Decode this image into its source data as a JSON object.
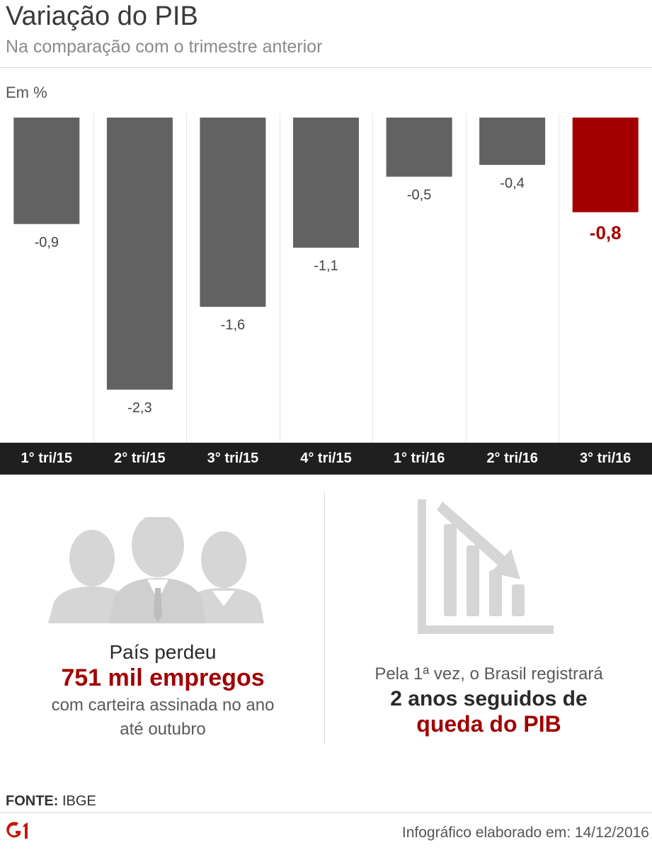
{
  "header": {
    "title": "Variação do PIB",
    "subtitle": "Na comparação com o trimestre anterior"
  },
  "chart_data": {
    "type": "bar",
    "unit_label": "Em %",
    "categories": [
      "1° tri/15",
      "2° tri/15",
      "3° tri/15",
      "4° tri/15",
      "1° tri/16",
      "2° tri/16",
      "3° tri/16"
    ],
    "values": [
      -0.9,
      -2.3,
      -1.6,
      -1.1,
      -0.5,
      -0.4,
      -0.8
    ],
    "value_labels": [
      "-0,9",
      "-2,3",
      "-1,6",
      "-1,1",
      "-0,5",
      "-0,4",
      "-0,8"
    ],
    "highlight_index": 6,
    "colors": {
      "default": "#626262",
      "highlight": "#a30000"
    },
    "grid": "vertical separators",
    "ylim": [
      -2.3,
      0
    ]
  },
  "stats": {
    "left": {
      "line1": "País perdeu",
      "line2": "751 mil empregos",
      "line3": "com carteira assinada no ano",
      "line4": "até outubro",
      "icon": "people-icon"
    },
    "right": {
      "line1": "Pela 1ª vez, o Brasil registrará",
      "line2": "2 anos seguidos de",
      "line3": "queda do PIB",
      "icon": "declining-bar-chart-icon"
    }
  },
  "footer": {
    "source_label": "FONTE:",
    "source_value": "IBGE",
    "brand": "G1",
    "credit": "Infográfico elaborado em: 14/12/2016"
  }
}
